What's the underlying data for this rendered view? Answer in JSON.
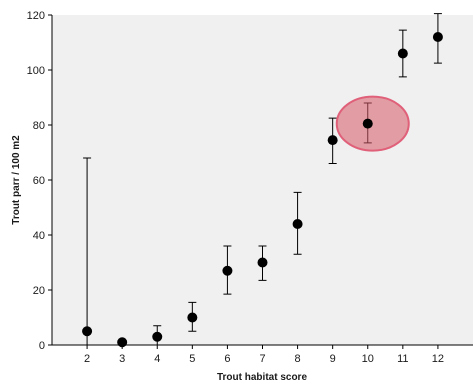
{
  "chart_data": {
    "type": "scatter",
    "title": "",
    "xlabel": "Trout habitat score",
    "ylabel": "Trout parr / 100 m2",
    "xlim": [
      1,
      13
    ],
    "ylim": [
      0,
      120
    ],
    "x_ticks": [
      2,
      3,
      4,
      5,
      6,
      7,
      8,
      9,
      10,
      11,
      12
    ],
    "y_ticks": [
      0,
      20,
      40,
      60,
      80,
      100,
      120
    ],
    "grid": false,
    "legend": "none",
    "series": [
      {
        "points": [
          {
            "x": 2,
            "y": 5,
            "err_low": 0,
            "err_high": 68
          },
          {
            "x": 3,
            "y": 1,
            "err_low": 0,
            "err_high": 1.5
          },
          {
            "x": 4,
            "y": 3,
            "err_low": 0,
            "err_high": 7
          },
          {
            "x": 5,
            "y": 10,
            "err_low": 5,
            "err_high": 15.5
          },
          {
            "x": 6,
            "y": 27,
            "err_low": 18.5,
            "err_high": 36
          },
          {
            "x": 7,
            "y": 30,
            "err_low": 23.5,
            "err_high": 36
          },
          {
            "x": 8,
            "y": 44,
            "err_low": 33,
            "err_high": 55.5
          },
          {
            "x": 9,
            "y": 74.5,
            "err_low": 66,
            "err_high": 82.5
          },
          {
            "x": 10,
            "y": 80.5,
            "err_low": 73.5,
            "err_high": 88
          },
          {
            "x": 11,
            "y": 106,
            "err_low": 97.5,
            "err_high": 114.5
          },
          {
            "x": 12,
            "y": 112,
            "err_low": 102.5,
            "err_high": 120.5
          }
        ]
      }
    ],
    "highlight": {
      "x": 10,
      "y": 80.5,
      "color": "#e0607a",
      "fill": "rgba(214,90,100,0.55)"
    },
    "colors": {
      "plot_background": "#f0f0f0",
      "marker": "#000000",
      "errorbar": "#000000"
    }
  }
}
